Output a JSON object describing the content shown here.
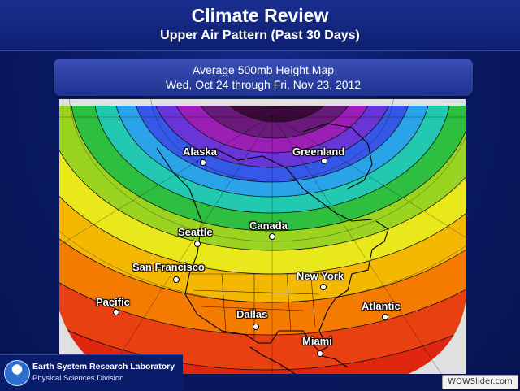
{
  "header": {
    "title": "Climate Review",
    "subtitle": "Upper Air Pattern (Past 30 Days)"
  },
  "panel": {
    "title": "Average 500mb Height Map",
    "dates": "Wed, Oct 24 through Fri, Nov 23, 2012"
  },
  "locations": [
    {
      "id": "alaska",
      "label": "Alaska"
    },
    {
      "id": "greenland",
      "label": "Greenland"
    },
    {
      "id": "canada",
      "label": "Canada"
    },
    {
      "id": "seattle",
      "label": "Seattle"
    },
    {
      "id": "san-francisco",
      "label": "San Francisco"
    },
    {
      "id": "new-york",
      "label": "New York"
    },
    {
      "id": "pacific",
      "label": "Pacific"
    },
    {
      "id": "dallas",
      "label": "Dallas"
    },
    {
      "id": "atlantic",
      "label": "Atlantic"
    },
    {
      "id": "miami",
      "label": "Miami"
    }
  ],
  "logo": {
    "org": "Earth System Research Laboratory",
    "division": "Physical Sciences Division",
    "emblem_text": "NOAA"
  },
  "watermark": "WOWSlider.com",
  "colors": {
    "background": "#0b1c66",
    "contour_scale": [
      "#3a0a3a",
      "#6a1a7a",
      "#9b1fb5",
      "#6a35d6",
      "#3558e8",
      "#2aa3e8",
      "#22c9b0",
      "#2fbf40",
      "#9bd420",
      "#e8e81a",
      "#f5b800",
      "#f57a00",
      "#e84010",
      "#d41a10"
    ]
  }
}
